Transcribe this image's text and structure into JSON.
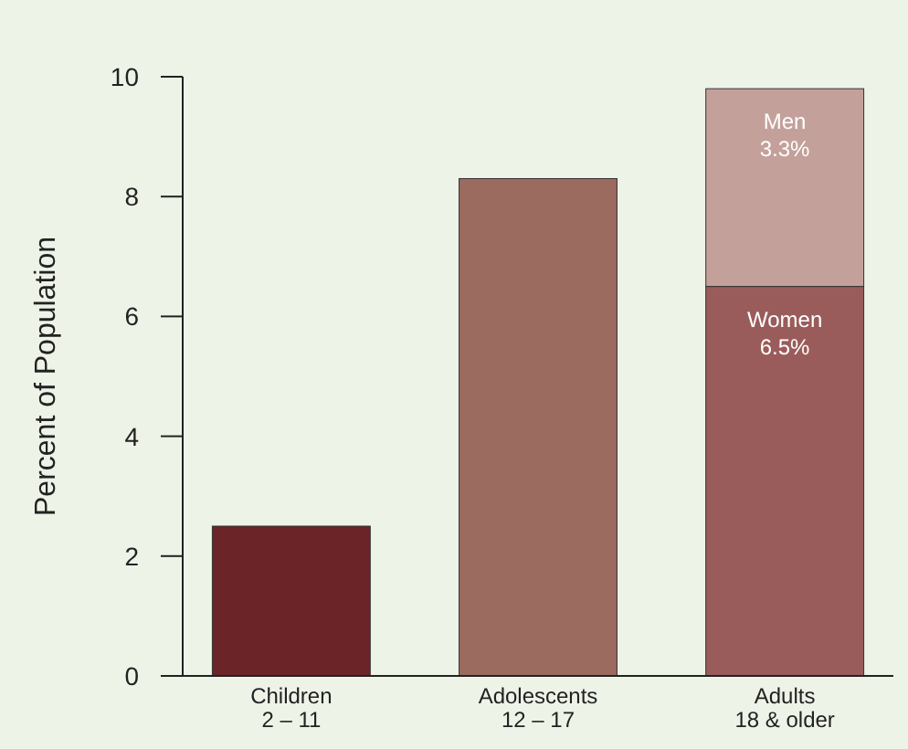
{
  "chart_data": {
    "type": "bar",
    "stacked": true,
    "ylabel": "Percent of Population",
    "categories": [
      "Children\n2 – 11",
      "Adolescents\n12 – 17",
      "Adults\n18 & older"
    ],
    "series": [
      {
        "colors": [
          "#6b2428",
          "#9b6b60",
          null
        ],
        "values": [
          2.5,
          8.3,
          null
        ]
      },
      {
        "name": "Women",
        "color": "#9a5c5a",
        "values": [
          null,
          null,
          6.5
        ],
        "value_labels": [
          null,
          null,
          "6.5%"
        ]
      },
      {
        "name": "Men",
        "color": "#c4a09a",
        "values": [
          null,
          null,
          3.3
        ],
        "value_labels": [
          null,
          null,
          "3.3%"
        ]
      }
    ],
    "ylim": [
      0,
      10
    ],
    "yticks": [
      0,
      2,
      4,
      6,
      8,
      10
    ],
    "grid": false
  }
}
